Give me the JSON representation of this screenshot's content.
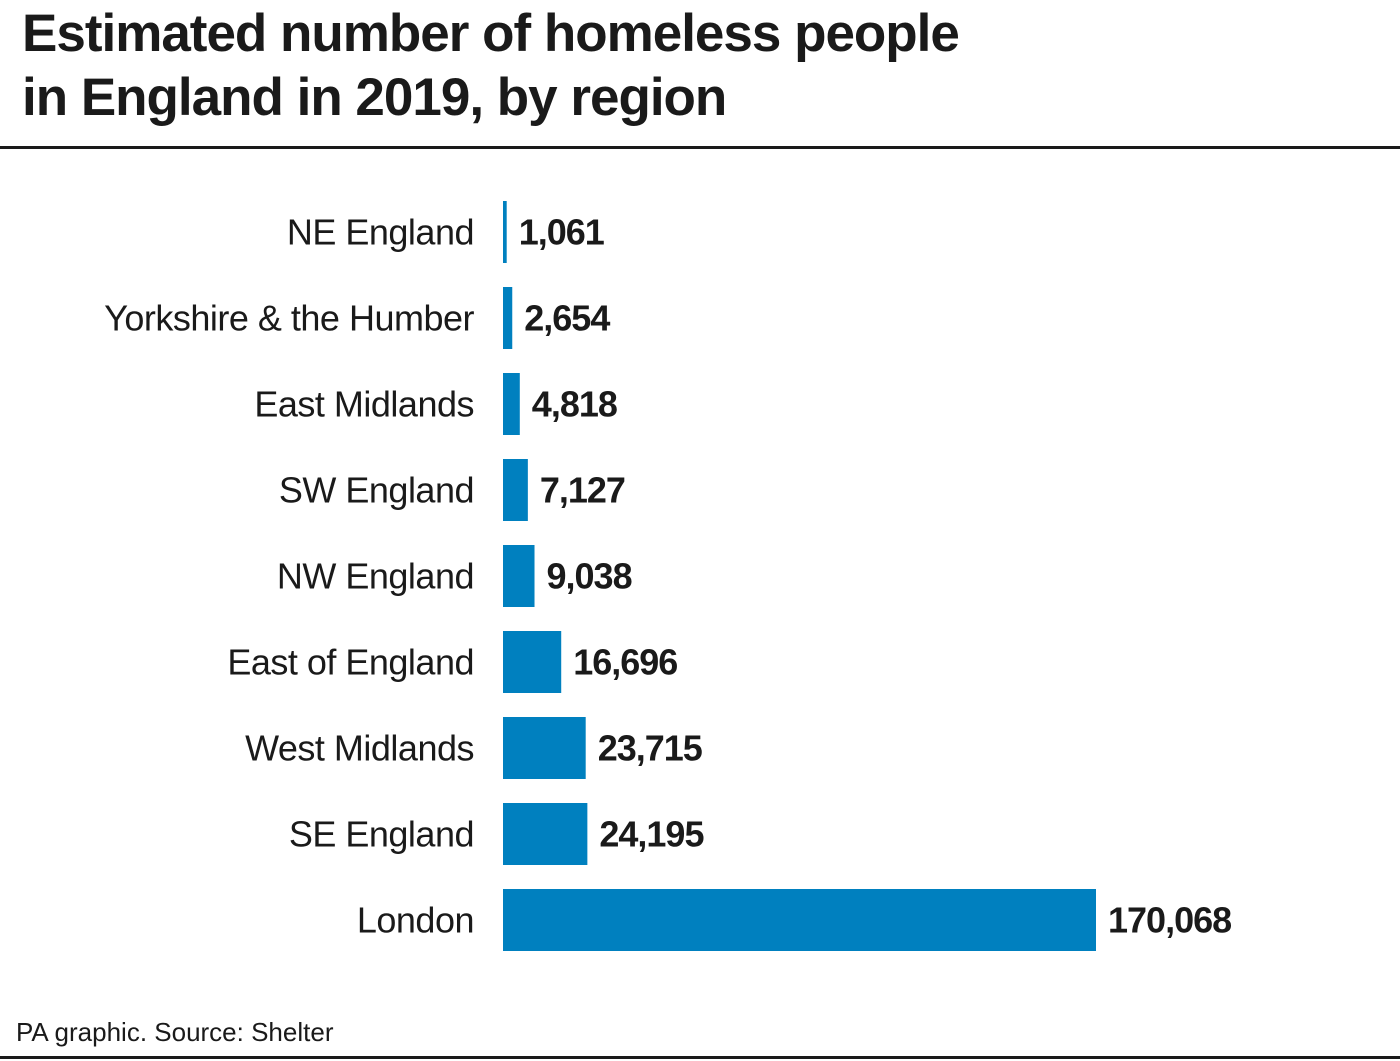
{
  "title_lines": [
    "Estimated number of homeless people",
    "in England in 2019, by region"
  ],
  "source": "PA graphic. Source: Shelter",
  "colors": {
    "bar": "#0080bf",
    "text": "#1a1a1a",
    "rule": "#1a1a1a"
  },
  "chart_data": {
    "type": "bar",
    "orientation": "horizontal",
    "title": "Estimated number of homeless people in England in 2019, by region",
    "xlabel": "",
    "ylabel": "",
    "grid": false,
    "legend": "none",
    "xlim": [
      0,
      170068
    ],
    "categories": [
      "NE England",
      "Yorkshire & the Humber",
      "East Midlands",
      "SW England",
      "NW England",
      "East of England",
      "West Midlands",
      "SE England",
      "London"
    ],
    "values": [
      1061,
      2654,
      4818,
      7127,
      9038,
      16696,
      23715,
      24195,
      170068
    ],
    "value_labels": [
      "1,061",
      "2,654",
      "4,818",
      "7,127",
      "9,038",
      "16,696",
      "23,715",
      "24,195",
      "170,068"
    ]
  }
}
